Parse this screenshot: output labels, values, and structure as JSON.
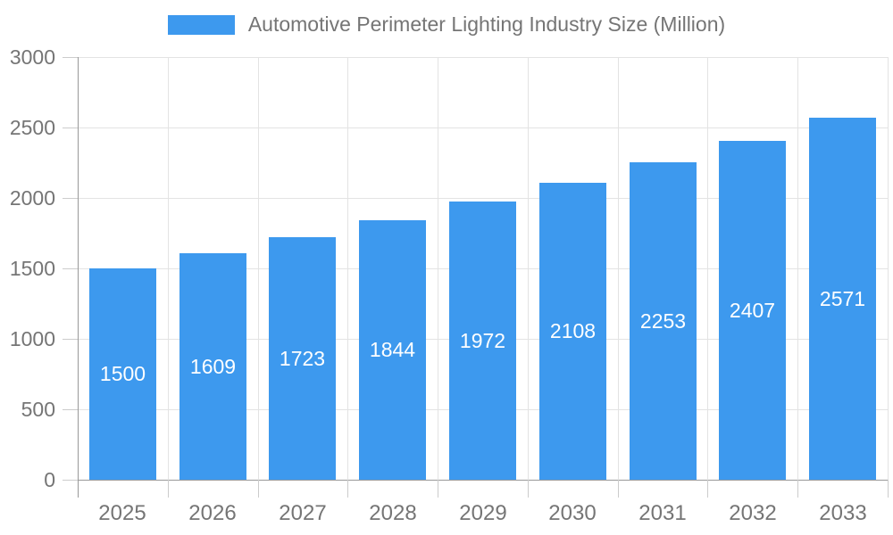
{
  "legend": {
    "label": "Automotive Perimeter Lighting Industry Size (Million)"
  },
  "chart_data": {
    "type": "bar",
    "title": "Automotive Perimeter Lighting Industry Size (Million)",
    "series_name": "Automotive Perimeter Lighting Industry Size (Million)",
    "categories": [
      "2025",
      "2026",
      "2027",
      "2028",
      "2029",
      "2030",
      "2031",
      "2032",
      "2033"
    ],
    "values": [
      1500,
      1609,
      1723,
      1844,
      1972,
      2108,
      2253,
      2407,
      2571
    ],
    "xlabel": "",
    "ylabel": "",
    "ylim": [
      0,
      3000
    ],
    "yticks": [
      0,
      500,
      1000,
      1500,
      2000,
      2500,
      3000
    ],
    "grid": true,
    "legend_position": "top-center",
    "value_label_position": "inside-center",
    "colors": {
      "bar": "#3D99EE",
      "value_label": "#FFFFFF",
      "axis_text": "#757575",
      "gridline": "#E3E3E3",
      "axis_line": "#999999",
      "tick": "#CCCCCC",
      "background": "#FFFFFF"
    }
  }
}
